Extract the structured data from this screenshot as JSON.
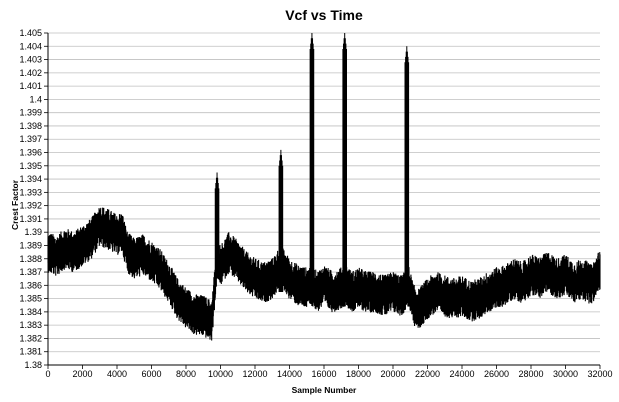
{
  "chart_data": {
    "type": "line",
    "title": "Vcf vs Time",
    "xlabel": "Sample Number",
    "ylabel": "Crest Factor",
    "xlim": [
      0,
      32000
    ],
    "ylim": [
      1.38,
      1.405
    ],
    "x_ticks": [
      0,
      2000,
      4000,
      6000,
      8000,
      10000,
      12000,
      14000,
      16000,
      18000,
      20000,
      22000,
      24000,
      26000,
      28000,
      30000,
      32000
    ],
    "x_tick_labels": [
      "0",
      "2000",
      "4000",
      "6000",
      "8000",
      "10000",
      "12000",
      "14000",
      "16000",
      "18000",
      "20000",
      "22000",
      "24000",
      "26000",
      "28000",
      "30000",
      "32000"
    ],
    "y_ticks": [
      1.38,
      1.381,
      1.382,
      1.383,
      1.384,
      1.385,
      1.386,
      1.387,
      1.388,
      1.389,
      1.39,
      1.391,
      1.392,
      1.393,
      1.394,
      1.395,
      1.396,
      1.397,
      1.398,
      1.399,
      1.4,
      1.401,
      1.402,
      1.403,
      1.404,
      1.405
    ],
    "y_tick_labels": [
      "1.38",
      "1.381",
      "1.382",
      "1.383",
      "1.384",
      "1.385",
      "1.386",
      "1.387",
      "1.388",
      "1.389",
      "1.39",
      "1.391",
      "1.392",
      "1.393",
      "1.394",
      "1.395",
      "1.396",
      "1.397",
      "1.398",
      "1.399",
      "1.4",
      "1.401",
      "1.402",
      "1.403",
      "1.404",
      "1.405"
    ],
    "grid": "horizontal",
    "legend": "none",
    "series": [
      {
        "color": "#000000",
        "marker": "small dot",
        "points": [
          [
            0,
            1.3885
          ],
          [
            500,
            1.3882
          ],
          [
            1000,
            1.3888
          ],
          [
            1500,
            1.3885
          ],
          [
            2000,
            1.389
          ],
          [
            2500,
            1.3895
          ],
          [
            3000,
            1.3905
          ],
          [
            3500,
            1.3902
          ],
          [
            4000,
            1.3898
          ],
          [
            4300,
            1.39
          ],
          [
            4600,
            1.3885
          ],
          [
            5000,
            1.388
          ],
          [
            5500,
            1.3883
          ],
          [
            6000,
            1.3878
          ],
          [
            6500,
            1.3872
          ],
          [
            7000,
            1.3862
          ],
          [
            7500,
            1.385
          ],
          [
            8000,
            1.3843
          ],
          [
            8500,
            1.3838
          ],
          [
            9000,
            1.3837
          ],
          [
            9500,
            1.3833
          ],
          [
            9800,
            1.388
          ],
          [
            10000,
            1.3875
          ],
          [
            10500,
            1.3885
          ],
          [
            11000,
            1.3878
          ],
          [
            11500,
            1.387
          ],
          [
            12000,
            1.3865
          ],
          [
            12500,
            1.3862
          ],
          [
            13000,
            1.3865
          ],
          [
            13500,
            1.3875
          ],
          [
            14000,
            1.3865
          ],
          [
            14500,
            1.386
          ],
          [
            15000,
            1.3858
          ],
          [
            15300,
            1.386
          ],
          [
            15600,
            1.3855
          ],
          [
            16000,
            1.386
          ],
          [
            16500,
            1.3855
          ],
          [
            17000,
            1.3858
          ],
          [
            17300,
            1.386
          ],
          [
            17600,
            1.3855
          ],
          [
            18000,
            1.3858
          ],
          [
            18500,
            1.3855
          ],
          [
            19000,
            1.3855
          ],
          [
            19500,
            1.3852
          ],
          [
            20000,
            1.3855
          ],
          [
            20500,
            1.3852
          ],
          [
            20900,
            1.386
          ],
          [
            21200,
            1.3845
          ],
          [
            21500,
            1.3842
          ],
          [
            22000,
            1.385
          ],
          [
            22500,
            1.3855
          ],
          [
            23000,
            1.3852
          ],
          [
            23500,
            1.385
          ],
          [
            24000,
            1.3852
          ],
          [
            24500,
            1.3848
          ],
          [
            25000,
            1.385
          ],
          [
            25500,
            1.3855
          ],
          [
            26000,
            1.3858
          ],
          [
            26500,
            1.386
          ],
          [
            27000,
            1.3865
          ],
          [
            27500,
            1.3862
          ],
          [
            28000,
            1.3868
          ],
          [
            28500,
            1.3866
          ],
          [
            29000,
            1.387
          ],
          [
            29500,
            1.3865
          ],
          [
            30000,
            1.3868
          ],
          [
            30500,
            1.3862
          ],
          [
            31000,
            1.3865
          ],
          [
            31500,
            1.386
          ],
          [
            32000,
            1.3872
          ]
        ]
      }
    ],
    "spikes": [
      {
        "x": 9800,
        "low": 1.3865,
        "high": 1.3945
      },
      {
        "x": 13500,
        "low": 1.3855,
        "high": 1.3962
      },
      {
        "x": 15300,
        "low": 1.385,
        "high": 1.405
      },
      {
        "x": 17200,
        "low": 1.385,
        "high": 1.405
      },
      {
        "x": 20800,
        "low": 1.385,
        "high": 1.404
      }
    ],
    "noise_amplitude": 0.0012
  }
}
